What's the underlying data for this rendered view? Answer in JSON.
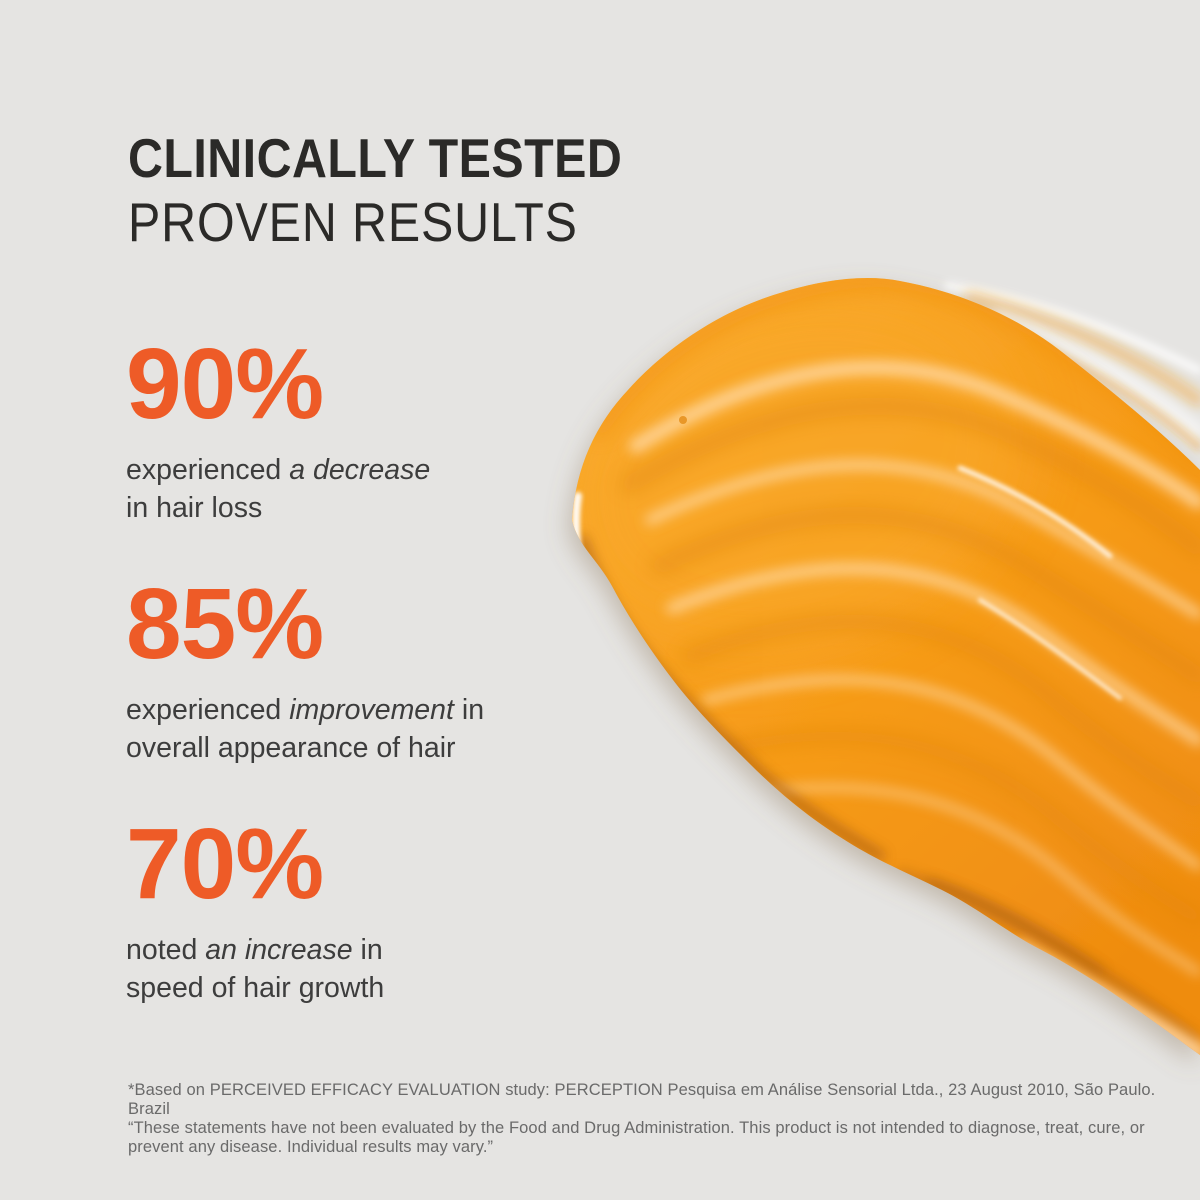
{
  "colors": {
    "background": "#e5e4e2",
    "title": "#2b2a28",
    "accent": "#ee5b27",
    "body": "#3d3d3d",
    "footnote": "#6a6a6a",
    "smear-light": "#f9a92c",
    "smear-base": "#f79d1a",
    "smear-deep": "#ef8c10",
    "smear-crease": "#df8307",
    "smear-shadow": "#a55c12",
    "smear-highlight": "#ffd9a4",
    "smear-glint": "#fff3e0",
    "smear-rim-light": "#ffd8a8"
  },
  "header": {
    "line1": "CLINICALLY TESTED",
    "line2": "PROVEN RESULTS"
  },
  "stats": [
    {
      "value": "90%",
      "lines": [
        [
          {
            "t": "experienced "
          },
          {
            "t": "a decrease",
            "i": true
          }
        ],
        [
          {
            "t": "in hair loss"
          }
        ]
      ]
    },
    {
      "value": "85%",
      "lines": [
        [
          {
            "t": "experienced "
          },
          {
            "t": "improvement",
            "i": true
          },
          {
            "t": " in"
          }
        ],
        [
          {
            "t": "overall appearance of hair"
          }
        ]
      ]
    },
    {
      "value": "70%",
      "lines": [
        [
          {
            "t": "noted "
          },
          {
            "t": "an increase",
            "i": true
          },
          {
            "t": " in"
          }
        ],
        [
          {
            "t": "speed of hair growth"
          }
        ]
      ]
    }
  ],
  "footnote": {
    "lines": [
      "*Based on PERCEIVED EFFICACY EVALUATION study: PERCEPTION Pesquisa em Análise Sensorial Ltda., 23 August 2010, São Paulo. Brazil",
      "“These statements have not been evaluated by the Food and Drug Administration. This product is not intended to diagnose, treat, cure, or",
      "prevent any disease. Individual results may vary.”"
    ]
  },
  "image": {
    "name": "orange-cream-smear"
  }
}
